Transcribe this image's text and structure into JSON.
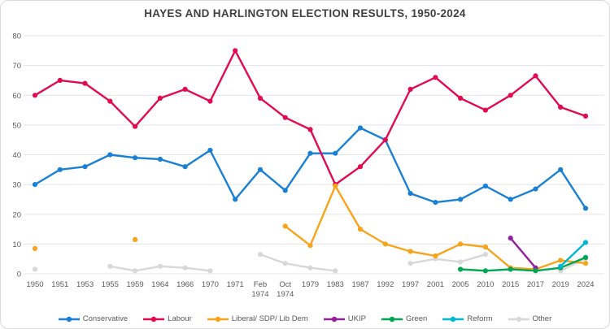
{
  "chart_data": {
    "type": "line",
    "title": "HAYES AND HARLINGTON ELECTION RESULTS, 1950-2024",
    "xlabel": "",
    "ylabel": "",
    "ylim": [
      0,
      80
    ],
    "yticks": [
      0,
      10,
      20,
      30,
      40,
      50,
      60,
      70,
      80
    ],
    "grid": true,
    "legend_position": "bottom",
    "categories": [
      "1950",
      "1951",
      "1953",
      "1955",
      "1959",
      "1964",
      "1966",
      "1970",
      "1971",
      "Feb 1974",
      "Oct 1974",
      "1979",
      "1983",
      "1987",
      "1992",
      "1997",
      "2001",
      "2005",
      "2010",
      "2015",
      "2017",
      "2019",
      "2024"
    ],
    "series": [
      {
        "name": "Conservative",
        "color": "#1a80d4",
        "values": [
          30,
          35,
          36,
          40,
          39,
          38.5,
          36,
          41.5,
          25,
          35,
          28,
          40.5,
          40.5,
          49,
          45,
          27,
          24,
          25,
          29.5,
          25,
          28.5,
          35,
          22
        ]
      },
      {
        "name": "Labour",
        "color": "#e20b50",
        "values": [
          60,
          65,
          64,
          58,
          49.5,
          59,
          62,
          58,
          75,
          59,
          52.5,
          48.5,
          30,
          36,
          45,
          62,
          66,
          59,
          55,
          60,
          66.5,
          56,
          53
        ]
      },
      {
        "name": "Liberal/ SDP/ Lib Dem",
        "color": "#f8a41b",
        "values": [
          8.5,
          null,
          null,
          null,
          11.5,
          null,
          null,
          null,
          null,
          null,
          16,
          9.5,
          29.5,
          15,
          10,
          7.5,
          6,
          10,
          9,
          2,
          1.5,
          4.5,
          3.5
        ]
      },
      {
        "name": "UKIP",
        "color": "#93209c",
        "values": [
          null,
          null,
          null,
          null,
          null,
          null,
          null,
          null,
          null,
          null,
          null,
          null,
          null,
          null,
          null,
          null,
          null,
          null,
          null,
          12,
          2,
          null,
          null
        ]
      },
      {
        "name": "Green",
        "color": "#00a651",
        "values": [
          null,
          null,
          null,
          null,
          null,
          null,
          null,
          null,
          null,
          null,
          null,
          null,
          null,
          null,
          null,
          null,
          null,
          1.5,
          1,
          1.5,
          1,
          2,
          5.5
        ]
      },
      {
        "name": "Reform",
        "color": "#00b8d4",
        "values": [
          null,
          null,
          null,
          null,
          null,
          null,
          null,
          null,
          null,
          null,
          null,
          null,
          null,
          null,
          null,
          null,
          null,
          null,
          null,
          null,
          null,
          2.5,
          10.5
        ]
      },
      {
        "name": "Other",
        "color": "#d8d8d8",
        "values": [
          1.5,
          null,
          null,
          2.5,
          1,
          2.5,
          2,
          1,
          null,
          6.5,
          3.5,
          2,
          1,
          null,
          null,
          3.5,
          5,
          4,
          6.5,
          null,
          null,
          1,
          5
        ]
      }
    ]
  }
}
